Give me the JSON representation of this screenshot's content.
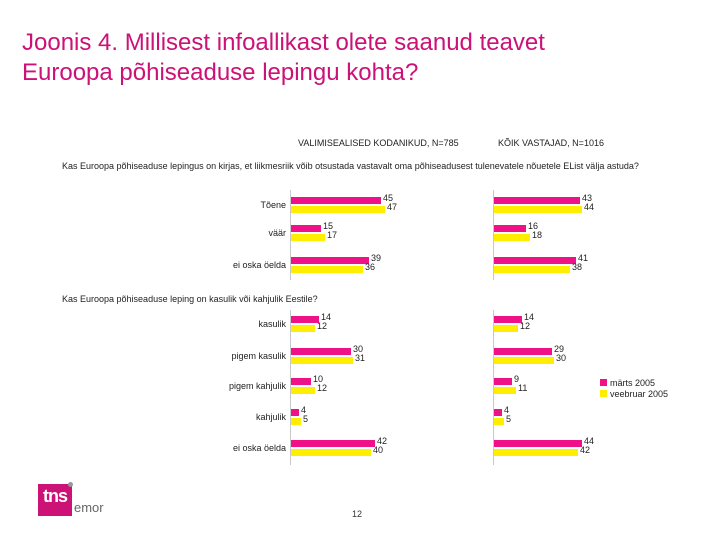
{
  "title_line1": "Joonis 4. Millisest infoallikast olete saanud teavet",
  "title_line2": "Euroopa põhiseaduse lepingu kohta?",
  "page_number": "12",
  "logo": {
    "brand": "tns",
    "sub": "emor"
  },
  "colors": {
    "title": "#cc1177",
    "series1": "#ee1188",
    "series2": "#ffee00"
  },
  "chart_data": {
    "type": "bar",
    "orientation": "horizontal",
    "panels": [
      "VALIMISEALISED KODANIKUD, N=785",
      "KÕIK VASTAJAD, N=1016"
    ],
    "series": [
      {
        "name": "märts 2005"
      },
      {
        "name": "veebruar 2005"
      }
    ],
    "xlim": [
      0,
      60
    ],
    "groups": [
      {
        "question": "Kas Euroopa põhiseaduse lepingus on kirjas, et liikmesriik võib otsustada vastavalt oma põhiseadusest tulenevatele nõuetele EList välja astuda?",
        "categories": [
          "Tõene",
          "väär",
          "ei oska öelda"
        ],
        "panel_values": [
          {
            "märts 2005": [
              45,
              15,
              39
            ],
            "veebruar 2005": [
              47,
              17,
              36
            ]
          },
          {
            "märts 2005": [
              43,
              16,
              41
            ],
            "veebruar 2005": [
              44,
              18,
              38
            ]
          }
        ]
      },
      {
        "question": "Kas Euroopa põhiseaduse leping on kasulik või kahjulik Eestile?",
        "categories": [
          "kasulik",
          "pigem kasulik",
          "pigem kahjulik",
          "kahjulik",
          "ei oska öelda"
        ],
        "panel_values": [
          {
            "märts 2005": [
              14,
              30,
              10,
              4,
              42
            ],
            "veebruar 2005": [
              12,
              31,
              12,
              5,
              40
            ]
          },
          {
            "märts 2005": [
              14,
              29,
              9,
              4,
              44
            ],
            "veebruar 2005": [
              12,
              30,
              11,
              5,
              42
            ]
          }
        ]
      }
    ]
  }
}
